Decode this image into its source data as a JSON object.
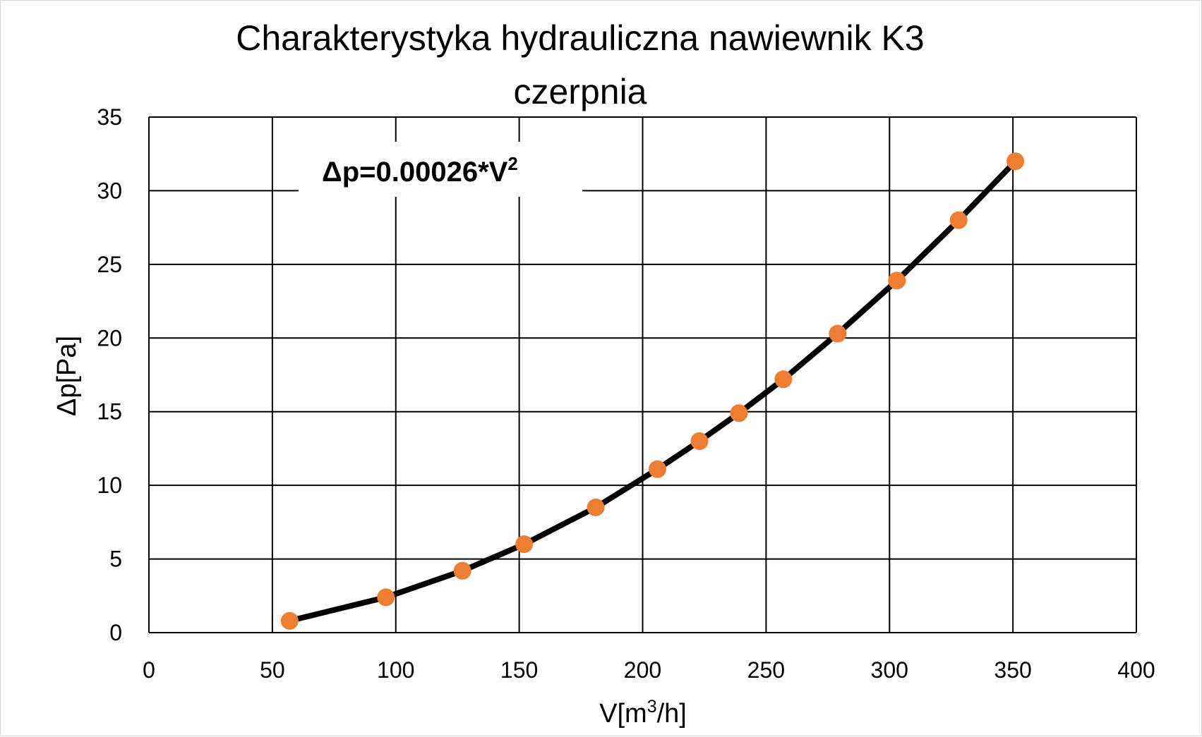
{
  "chart_data": {
    "type": "scatter",
    "title_line1": "Charakterystyka hydrauliczna nawiewnik K3",
    "title_line2": "czerpnia",
    "xlabel_prefix": "V[m",
    "xlabel_sup": "3",
    "xlabel_suffix": "/h]",
    "ylabel": "Δp[Pa]",
    "annotation_main": "Δp=0.00026*V",
    "annotation_sup": "2",
    "xlim": [
      0,
      400
    ],
    "ylim": [
      0,
      35
    ],
    "x_ticks": [
      "0",
      "50",
      "100",
      "150",
      "200",
      "250",
      "300",
      "350",
      "400"
    ],
    "y_ticks": [
      "0",
      "5",
      "10",
      "15",
      "20",
      "25",
      "30",
      "35"
    ],
    "grid": true,
    "trendline": {
      "coefficient": 0.00026,
      "exponent": 2,
      "x_range": [
        57,
        351
      ],
      "color": "#000000"
    },
    "series": [
      {
        "x": [
          57,
          96,
          127,
          152,
          181,
          206,
          223,
          239,
          257,
          279,
          303,
          328,
          351
        ],
        "y": [
          0.8,
          2.4,
          4.2,
          6.0,
          8.5,
          11.1,
          13.0,
          14.9,
          17.2,
          20.3,
          23.9,
          28.0,
          32.0
        ],
        "color": "#ED7D31"
      }
    ]
  }
}
